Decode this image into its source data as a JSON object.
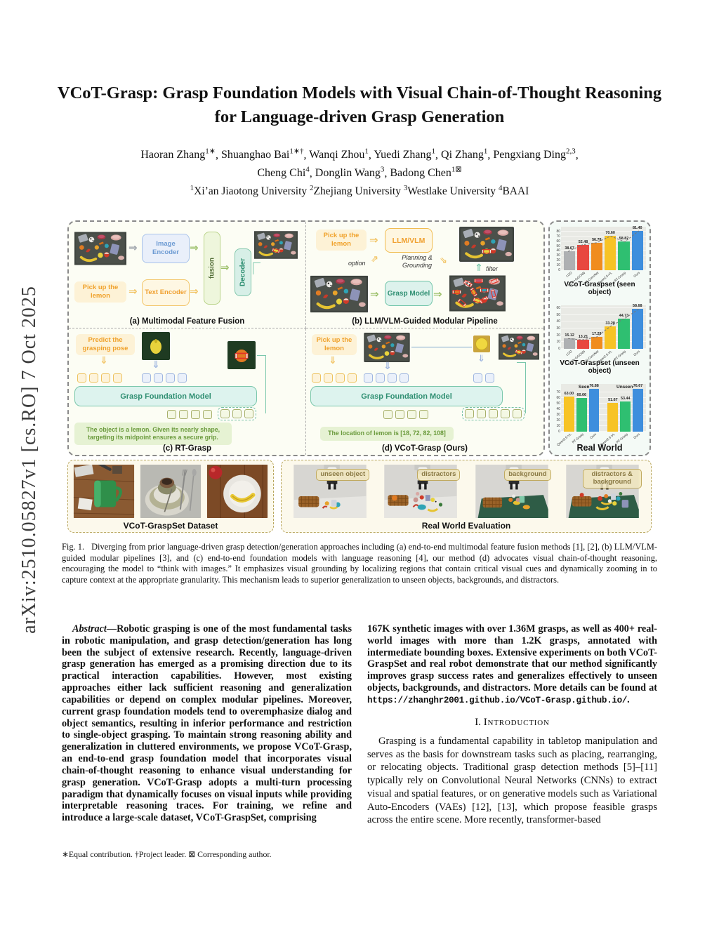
{
  "watermark": "arXiv:2510.05827v1  [cs.RO]  7 Oct 2025",
  "title": "VCoT-Grasp: Grasp Foundation Models with Visual Chain-of-Thought Reasoning for Language-driven Grasp Generation",
  "authors": {
    "line1": [
      {
        "name": "Haoran Zhang",
        "sup": "1∗"
      },
      {
        "name": "Shuanghao Bai",
        "sup": "1∗†"
      },
      {
        "name": "Wanqi Zhou",
        "sup": "1"
      },
      {
        "name": "Yuedi Zhang",
        "sup": "1"
      },
      {
        "name": "Qi Zhang",
        "sup": "1"
      },
      {
        "name": "Pengxiang Ding",
        "sup": "2,3"
      }
    ],
    "line2": [
      {
        "name": "Cheng Chi",
        "sup": "4"
      },
      {
        "name": "Donglin Wang",
        "sup": "3"
      },
      {
        "name": "Badong Chen",
        "sup": "1⊠"
      }
    ],
    "affiliations": [
      {
        "sup": "1",
        "name": "Xi’an Jiaotong University"
      },
      {
        "sup": "2",
        "name": "Zhejiang University"
      },
      {
        "sup": "3",
        "name": "Westlake University"
      },
      {
        "sup": "4",
        "name": "BAAI"
      }
    ]
  },
  "figure": {
    "panel_a": {
      "prompt": "Pick up the lemon",
      "image_encoder": "Image Encoder",
      "text_encoder": "Text Encoder",
      "fusion": "fusion",
      "decoder": "Decoder",
      "caption": "(a) Multimodal Feature Fusion"
    },
    "panel_b": {
      "prompt": "Pick up the lemon",
      "llm": "LLM/VLM",
      "option": "option",
      "planning": "Planning & Grounding",
      "filter": "filter",
      "grasp_model": "Grasp Model",
      "caption": "(b) LLM/VLM-Guided Modular Pipeline"
    },
    "panel_c": {
      "prompt": "Predict the grasping pose",
      "model": "Grasp Foundation Model",
      "reasoning": "The object is a lemon. Given its nearly shape, targeting its midpoint ensures a secure grip.",
      "caption": "(c) RT-Grasp"
    },
    "panel_d": {
      "prompt": "Pick up the lemon",
      "model": "Grasp Foundation Model",
      "reasoning": "The location of lemon is [18, 72, 82, 108]",
      "caption": "(d) VCoT-Grasp (Ours)"
    },
    "dataset_caption": "VCoT-GraspSet Dataset",
    "realworld_caption": "Real World Evaluation",
    "realworld_labels": [
      "unseen object",
      "distractors",
      "background",
      "distractors & background"
    ]
  },
  "chart_data": [
    {
      "type": "bar",
      "title": "VCoT-Graspset (seen object)",
      "categories": [
        "LGD",
        "CLIP+GGCNN",
        "GR-ConvNet",
        "Qwen2.5-VL",
        "RT-Grasp",
        "Ours"
      ],
      "values": [
        38.67,
        52.48,
        56.78,
        70.6,
        58.82,
        81.4
      ],
      "colors": [
        "#aeb0b2",
        "#e8473f",
        "#f08c1e",
        "#f7c325",
        "#2fbf71",
        "#3e8edd"
      ],
      "ylim": [
        0,
        90
      ],
      "yticks": [
        0,
        10,
        20,
        30,
        40,
        50,
        60,
        70,
        80
      ],
      "trendline": true,
      "xlabel": "",
      "ylabel": "grasp success rate (%)"
    },
    {
      "type": "bar",
      "title": "VCoT-Graspset (unseen object)",
      "categories": [
        "LGD",
        "CLIP+GGCNN",
        "GR-ConvNet",
        "Qwen2.5-VL",
        "RT-Grasp",
        "Ours"
      ],
      "values": [
        15.12,
        13.21,
        17.29,
        33.28,
        44.73,
        58.68
      ],
      "colors": [
        "#aeb0b2",
        "#e8473f",
        "#f08c1e",
        "#f7c325",
        "#2fbf71",
        "#3e8edd"
      ],
      "ylim": [
        0,
        64
      ],
      "yticks": [
        0,
        10,
        20,
        30,
        40,
        50,
        60
      ],
      "trendline": true,
      "xlabel": "",
      "ylabel": "grasp success rate (%)"
    },
    {
      "type": "grouped-bar",
      "title": "Real World",
      "groups": [
        "Seen",
        "Unseen"
      ],
      "series": [
        {
          "name": "Qwen2.5-VL",
          "values": [
            63.0,
            51.67
          ]
        },
        {
          "name": "RT-Grasp",
          "values": [
            60.06,
            53.44
          ]
        },
        {
          "name": "Ours",
          "values": [
            76.88,
            76.67
          ]
        }
      ],
      "colors": [
        "#f7c325",
        "#2fbf71",
        "#3e8edd"
      ],
      "ylim": [
        0,
        85
      ],
      "yticks": [
        0,
        10,
        20,
        30,
        40,
        50,
        60,
        70
      ],
      "xlabel": "",
      "ylabel": "grasp success rate (%)"
    }
  ],
  "caption": {
    "tag": "Fig. 1.",
    "text": "Diverging from prior language-driven grasp detection/generation approaches including (a) end-to-end multimodal feature fusion methods [1], [2], (b) LLM/VLM-guided modular pipelines [3], and (c) end-to-end foundation models with language reasoning [4], our method (d) advocates visual chain-of-thought reasoning, encouraging the model to “think with images.” It emphasizes visual grounding by localizing regions that contain critical visual cues and dynamically zooming in to capture context at the appropriate granularity. This mechanism leads to superior generalization to unseen objects, backgrounds, and distractors."
  },
  "abstract": {
    "lead": "Abstract",
    "text": "—Robotic grasping is one of the most fundamental tasks in robotic manipulation, and grasp detection/generation has long been the subject of extensive research. Recently, language-driven grasp generation has emerged as a promising direction due to its practical interaction capabilities. However, most existing approaches either lack sufficient reasoning and generalization capabilities or depend on complex modular pipelines. Moreover, current grasp foundation models tend to overemphasize dialog and object semantics, resulting in inferior performance and restriction to single-object grasping. To maintain strong reasoning ability and generalization in cluttered environments, we propose VCoT-Grasp, an end-to-end grasp foundation model that incorporates visual chain-of-thought reasoning to enhance visual understanding for grasp generation. VCoT-Grasp adopts a multi-turn processing paradigm that dynamically focuses on visual inputs while providing interpretable reasoning traces. For training, we refine and introduce a large-scale dataset, VCoT-GraspSet, comprising"
  },
  "right_column": {
    "cont_text": "167K synthetic images with over 1.36M grasps, as well as 400+ real-world images with more than 1.2K grasps, annotated with intermediate bounding boxes. Extensive experiments on both VCoT-GraspSet and real robot demonstrate that our method significantly improves grasp success rates and generalizes effectively to unseen objects, backgrounds, and distractors. More details can be found at ",
    "url": "https://zhanghr2001.github.io/VCoT-Grasp.github.io/",
    "url_suffix": ".",
    "section_number": "I.",
    "section_title": "Introduction",
    "intro_text": "Grasping is a fundamental capability in tabletop manipulation and serves as the basis for downstream tasks such as placing, rearranging, or relocating objects. Traditional grasp detection methods [5]–[11] typically rely on Convolutional Neural Networks (CNNs) to extract visual and spatial features, or on generative models such as Variational Auto-Encoders (VAEs) [12], [13], which propose feasible grasps across the entire scene. More recently, transformer-based"
  },
  "footnote": "∗Equal contribution. †Project leader. ⊠ Corresponding author."
}
